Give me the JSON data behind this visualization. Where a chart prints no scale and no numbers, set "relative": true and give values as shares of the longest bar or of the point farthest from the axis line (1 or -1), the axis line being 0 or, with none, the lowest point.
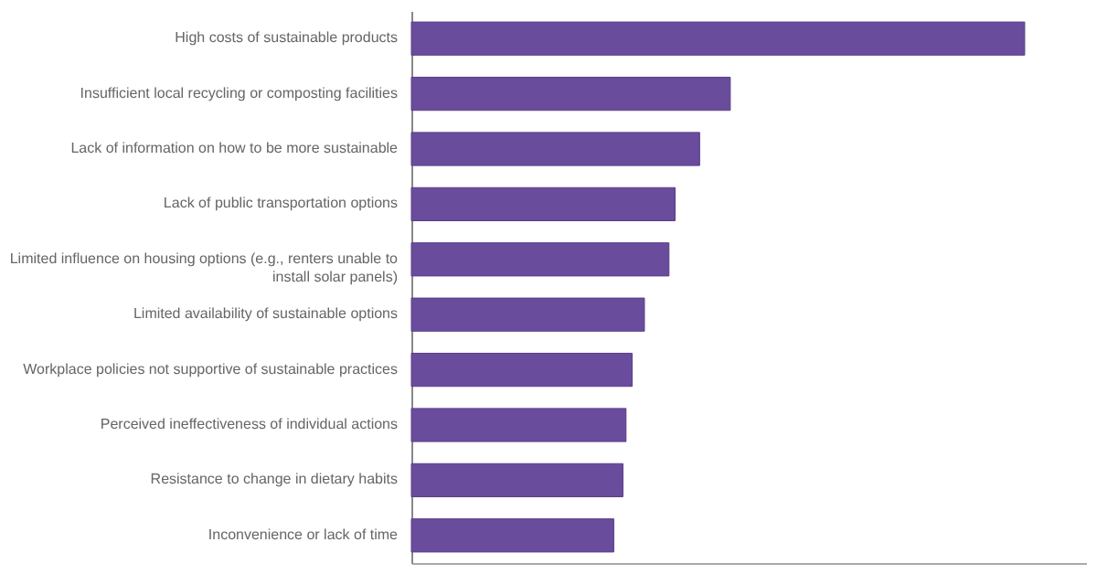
{
  "chart_data": {
    "type": "bar",
    "orientation": "horizontal",
    "relative": true,
    "color": "#6a4c9c",
    "categories": [
      "High costs of sustainable products",
      "Insufficient local recycling or composting facilities",
      "Lack of information on how to be more sustainable",
      "Lack of public transportation options",
      "Limited influence on housing options (e.g., renters unable to install solar panels)",
      "Limited availability of sustainable options",
      "Workplace policies not supportive of sustainable practices",
      "Perceived ineffectiveness of individual actions",
      "Resistance to change in dietary habits",
      "Inconvenience or lack of time"
    ],
    "values": [
      1,
      0.52,
      0.47,
      0.43,
      0.42,
      0.38,
      0.36,
      0.35,
      0.345,
      0.33
    ]
  }
}
